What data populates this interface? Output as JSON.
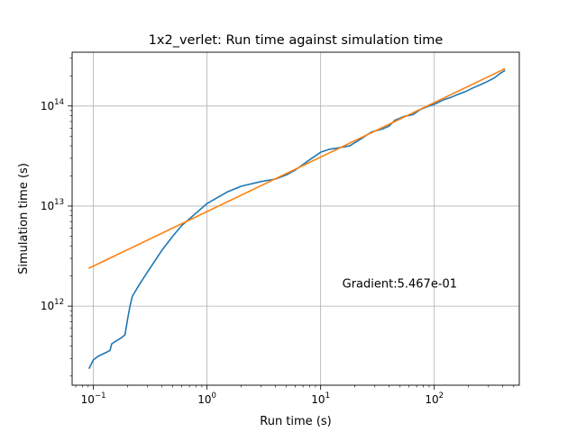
{
  "chart_data": {
    "type": "line",
    "title": "1x2_verlet: Run time against simulation time",
    "xlabel": "Run time (s)",
    "ylabel": "Simulation time (s)",
    "xscale": "log",
    "yscale": "log",
    "xlim": [
      0.065,
      560
    ],
    "ylim": [
      162000000000.0,
      345000000000000.0
    ],
    "grid": true,
    "x_ticks": [
      {
        "value": 0.1,
        "base": "10",
        "exp": "−1"
      },
      {
        "value": 1,
        "base": "10",
        "exp": "0"
      },
      {
        "value": 10,
        "base": "10",
        "exp": "1"
      },
      {
        "value": 100,
        "base": "10",
        "exp": "2"
      }
    ],
    "y_ticks": [
      {
        "value": 1000000000000.0,
        "base": "10",
        "exp": "12"
      },
      {
        "value": 10000000000000.0,
        "base": "10",
        "exp": "13"
      },
      {
        "value": 100000000000000.0,
        "base": "10",
        "exp": "14"
      }
    ],
    "annotation": {
      "text": "Gradient:5.467e-01",
      "x": 15.5,
      "y": 1700000000000.0
    },
    "series": [
      {
        "color": "#1f77b4",
        "points": [
          [
            0.092,
            240000000000.0
          ],
          [
            0.1,
            290000000000.0
          ],
          [
            0.11,
            315000000000.0
          ],
          [
            0.13,
            345000000000.0
          ],
          [
            0.14,
            360000000000.0
          ],
          [
            0.145,
            420000000000.0
          ],
          [
            0.18,
            490000000000.0
          ],
          [
            0.19,
            520000000000.0
          ],
          [
            0.2,
            740000000000.0
          ],
          [
            0.21,
            1000000000000.0
          ],
          [
            0.22,
            1250000000000.0
          ],
          [
            0.25,
            1600000000000.0
          ],
          [
            0.3,
            2200000000000.0
          ],
          [
            0.4,
            3600000000000.0
          ],
          [
            0.5,
            5000000000000.0
          ],
          [
            0.6,
            6400000000000.0
          ],
          [
            0.8,
            8500000000000.0
          ],
          [
            1.0,
            10600000000000.0
          ],
          [
            1.5,
            13800000000000.0
          ],
          [
            2.0,
            15800000000000.0
          ],
          [
            3.0,
            17600000000000.0
          ],
          [
            4.0,
            18600000000000.0
          ],
          [
            5.0,
            20500000000000.0
          ],
          [
            6.0,
            23000000000000.0
          ],
          [
            8.0,
            29000000000000.0
          ],
          [
            10.0,
            34500000000000.0
          ],
          [
            12.0,
            37000000000000.0
          ],
          [
            15.0,
            38500000000000.0
          ],
          [
            18.0,
            40000000000000.0
          ],
          [
            22.0,
            46000000000000.0
          ],
          [
            28.0,
            55000000000000.0
          ],
          [
            35.0,
            59000000000000.0
          ],
          [
            40.0,
            63000000000000.0
          ],
          [
            45.0,
            72000000000000.0
          ],
          [
            55.0,
            79000000000000.0
          ],
          [
            65.0,
            82000000000000.0
          ],
          [
            75.0,
            92000000000000.0
          ],
          [
            90.0,
            100000000000000.0
          ],
          [
            100.0,
            104000000000000.0
          ],
          [
            120.0,
            115000000000000.0
          ],
          [
            140.0,
            122000000000000.0
          ],
          [
            160.0,
            130000000000000.0
          ],
          [
            190.0,
            140000000000000.0
          ],
          [
            220.0,
            152000000000000.0
          ],
          [
            260.0,
            165000000000000.0
          ],
          [
            300.0,
            178000000000000.0
          ],
          [
            340.0,
            192000000000000.0
          ],
          [
            380.0,
            212000000000000.0
          ],
          [
            415.0,
            225000000000000.0
          ]
        ]
      },
      {
        "color": "#ff7f0e",
        "points": [
          [
            0.092,
            2400000000000.0
          ],
          [
            415.0,
            235000000000000.0
          ]
        ]
      }
    ]
  }
}
